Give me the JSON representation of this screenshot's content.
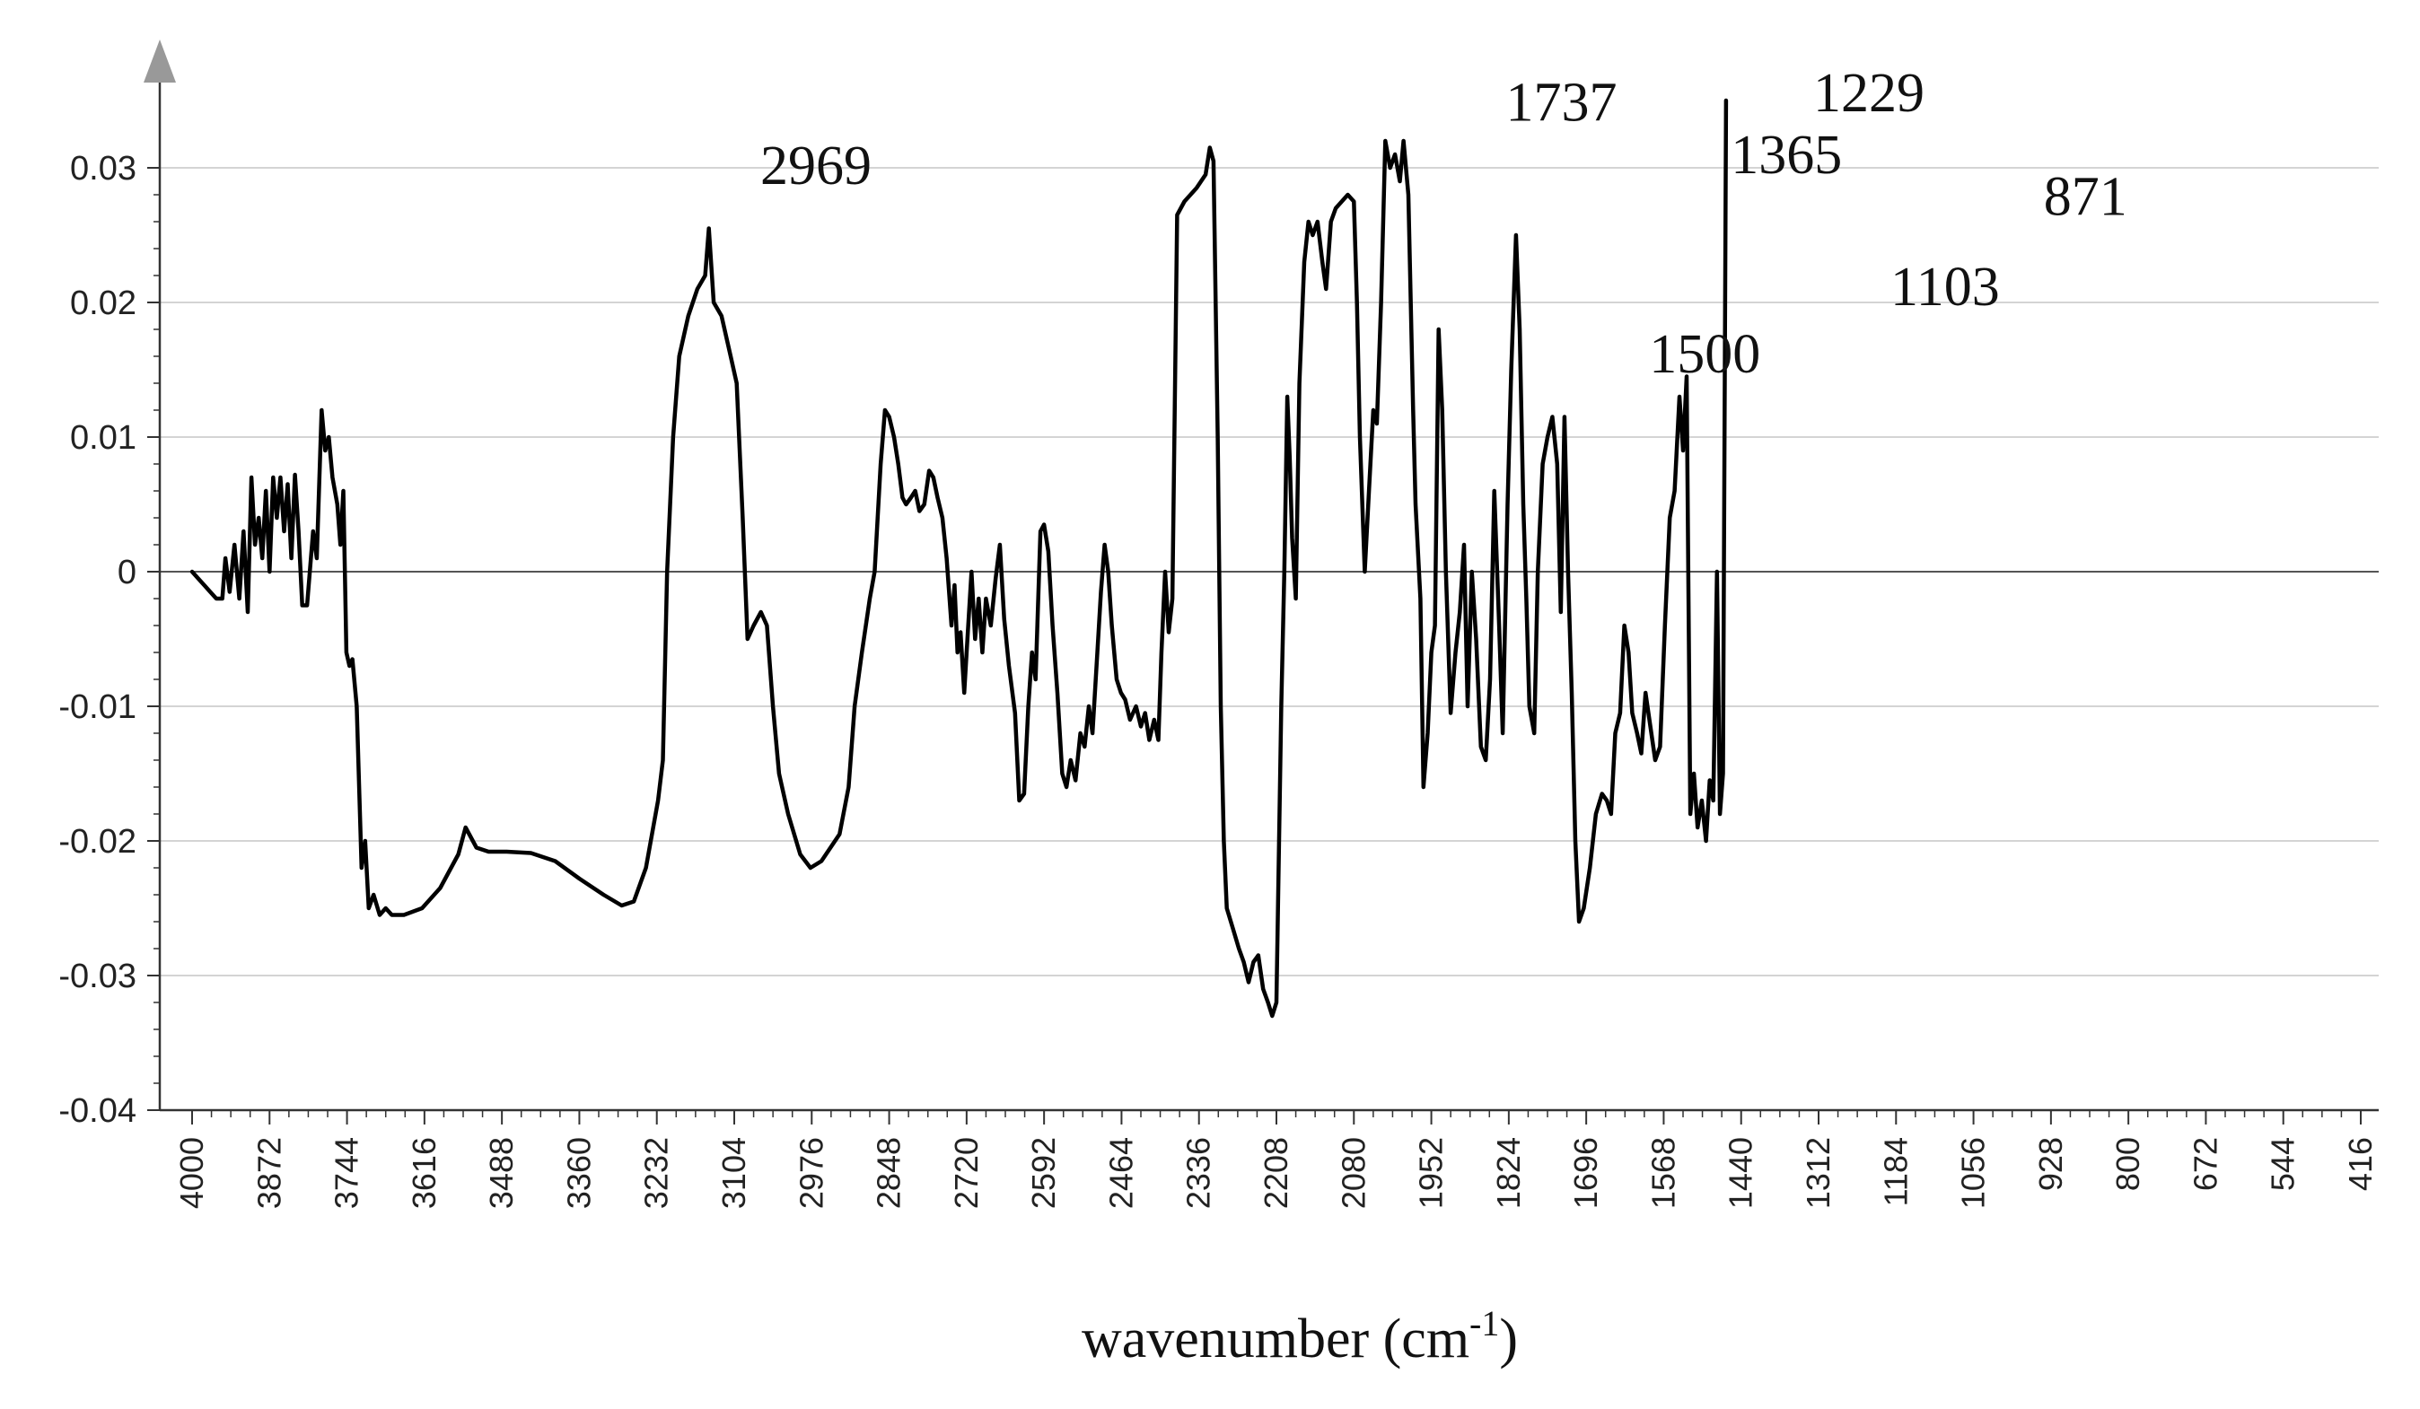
{
  "chart_data": {
    "type": "line",
    "title": "",
    "xlabel_main": "wavenumber (cm",
    "xlabel_sup": "-1",
    "xlabel_close": ")",
    "ylabel": "",
    "xlim": [
      4000,
      400
    ],
    "ylim": [
      -0.04,
      0.035
    ],
    "grid": "horizontal",
    "legend": "none",
    "y_ticks": [
      "0.03",
      "0.02",
      "0.01",
      "0",
      "-0.01",
      "-0.02",
      "-0.03",
      "-0.04"
    ],
    "y_tick_values": [
      0.03,
      0.02,
      0.01,
      0,
      -0.01,
      -0.02,
      -0.03,
      -0.04
    ],
    "x_ticks": [
      "4000",
      "3872",
      "3744",
      "3616",
      "3488",
      "3360",
      "3232",
      "3104",
      "2976",
      "2848",
      "2720",
      "2592",
      "2464",
      "2336",
      "2208",
      "2080",
      "1952",
      "1824",
      "1696",
      "1568",
      "1440",
      "1312",
      "1184",
      "1056",
      "928",
      "800",
      "672",
      "544",
      "416"
    ],
    "x_tick_values": [
      4000,
      3872,
      3744,
      3616,
      3488,
      3360,
      3232,
      3104,
      2976,
      2848,
      2720,
      2592,
      2464,
      2336,
      2208,
      2080,
      1952,
      1824,
      1696,
      1568,
      1440,
      1312,
      1184,
      1056,
      928,
      800,
      672,
      544,
      416
    ],
    "annotations": [
      {
        "text": "2969",
        "x": 2969,
        "y": 0.0288
      },
      {
        "text": "1737",
        "x": 1737,
        "y": 0.0335
      },
      {
        "text": "1500",
        "x": 1500,
        "y": 0.0148
      },
      {
        "text": "1365",
        "x": 1365,
        "y": 0.0296
      },
      {
        "text": "1229",
        "x": 1229,
        "y": 0.0342
      },
      {
        "text": "1103",
        "x": 1103,
        "y": 0.0198
      },
      {
        "text": "871",
        "x": 871,
        "y": 0.0265
      }
    ],
    "series": [
      {
        "color": "#000000",
        "points": [
          [
            4000,
            0.0
          ],
          [
            3990,
            -0.0005
          ],
          [
            3980,
            -0.001
          ],
          [
            3970,
            -0.0015
          ],
          [
            3960,
            -0.002
          ],
          [
            3950,
            -0.002
          ],
          [
            3945,
            0.001
          ],
          [
            3938,
            -0.0015
          ],
          [
            3930,
            0.002
          ],
          [
            3922,
            -0.002
          ],
          [
            3915,
            0.003
          ],
          [
            3908,
            -0.003
          ],
          [
            3902,
            0.007
          ],
          [
            3896,
            0.002
          ],
          [
            3890,
            0.004
          ],
          [
            3884,
            0.001
          ],
          [
            3878,
            0.006
          ],
          [
            3872,
            0.0
          ],
          [
            3866,
            0.007
          ],
          [
            3860,
            0.004
          ],
          [
            3854,
            0.007
          ],
          [
            3848,
            0.003
          ],
          [
            3842,
            0.0065
          ],
          [
            3836,
            0.001
          ],
          [
            3830,
            0.0072
          ],
          [
            3824,
            0.003
          ],
          [
            3818,
            -0.0025
          ],
          [
            3810,
            -0.0025
          ],
          [
            3800,
            0.003
          ],
          [
            3794,
            0.001
          ],
          [
            3786,
            0.012
          ],
          [
            3780,
            0.009
          ],
          [
            3774,
            0.01
          ],
          [
            3768,
            0.007
          ],
          [
            3760,
            0.005
          ],
          [
            3755,
            0.002
          ],
          [
            3750,
            0.006
          ],
          [
            3745,
            -0.006
          ],
          [
            3740,
            -0.007
          ],
          [
            3735,
            -0.0065
          ],
          [
            3728,
            -0.01
          ],
          [
            3720,
            -0.022
          ],
          [
            3714,
            -0.02
          ],
          [
            3708,
            -0.025
          ],
          [
            3700,
            -0.024
          ],
          [
            3690,
            -0.0255
          ],
          [
            3680,
            -0.025
          ],
          [
            3670,
            -0.0255
          ],
          [
            3650,
            -0.0255
          ],
          [
            3620,
            -0.025
          ],
          [
            3590,
            -0.0235
          ],
          [
            3560,
            -0.021
          ],
          [
            3548,
            -0.019
          ],
          [
            3530,
            -0.0205
          ],
          [
            3510,
            -0.0208
          ],
          [
            3480,
            -0.0208
          ],
          [
            3440,
            -0.0209
          ],
          [
            3400,
            -0.0215
          ],
          [
            3360,
            -0.0228
          ],
          [
            3320,
            -0.024
          ],
          [
            3290,
            -0.0248
          ],
          [
            3270,
            -0.0245
          ],
          [
            3250,
            -0.022
          ],
          [
            3230,
            -0.017
          ],
          [
            3222,
            -0.014
          ],
          [
            3215,
            0.0
          ],
          [
            3205,
            0.01
          ],
          [
            3195,
            0.016
          ],
          [
            3180,
            0.019
          ],
          [
            3165,
            0.021
          ],
          [
            3152,
            0.022
          ],
          [
            3146,
            0.0255
          ],
          [
            3138,
            0.02
          ],
          [
            3125,
            0.019
          ],
          [
            3110,
            0.016
          ],
          [
            3100,
            0.014
          ],
          [
            3090,
            0.004
          ],
          [
            3082,
            -0.005
          ],
          [
            3072,
            -0.004
          ],
          [
            3060,
            -0.003
          ],
          [
            3050,
            -0.004
          ],
          [
            3040,
            -0.01
          ],
          [
            3030,
            -0.015
          ],
          [
            3015,
            -0.018
          ],
          [
            2995,
            -0.021
          ],
          [
            2978,
            -0.022
          ],
          [
            2960,
            -0.0215
          ],
          [
            2945,
            -0.0205
          ],
          [
            2930,
            -0.0195
          ],
          [
            2915,
            -0.016
          ],
          [
            2905,
            -0.01
          ],
          [
            2893,
            -0.006
          ],
          [
            2880,
            -0.002
          ],
          [
            2872,
            0.0
          ],
          [
            2862,
            0.008
          ],
          [
            2855,
            0.012
          ],
          [
            2848,
            0.0115
          ],
          [
            2840,
            0.01
          ],
          [
            2833,
            0.008
          ],
          [
            2826,
            0.0055
          ],
          [
            2820,
            0.005
          ],
          [
            2812,
            0.0055
          ],
          [
            2805,
            0.006
          ],
          [
            2798,
            0.0045
          ],
          [
            2790,
            0.005
          ],
          [
            2782,
            0.0075
          ],
          [
            2775,
            0.007
          ],
          [
            2768,
            0.0055
          ],
          [
            2760,
            0.004
          ],
          [
            2753,
            0.001
          ],
          [
            2745,
            -0.004
          ],
          [
            2740,
            -0.001
          ],
          [
            2735,
            -0.006
          ],
          [
            2730,
            -0.0045
          ],
          [
            2724,
            -0.009
          ],
          [
            2718,
            -0.0045
          ],
          [
            2712,
            0.0
          ],
          [
            2706,
            -0.005
          ],
          [
            2700,
            -0.002
          ],
          [
            2694,
            -0.006
          ],
          [
            2688,
            -0.002
          ],
          [
            2680,
            -0.004
          ],
          [
            2672,
            -0.0005
          ],
          [
            2665,
            0.002
          ],
          [
            2658,
            -0.0035
          ],
          [
            2650,
            -0.007
          ],
          [
            2640,
            -0.0105
          ],
          [
            2633,
            -0.017
          ],
          [
            2625,
            -0.0165
          ],
          [
            2618,
            -0.01
          ],
          [
            2612,
            -0.006
          ],
          [
            2606,
            -0.008
          ],
          [
            2598,
            0.003
          ],
          [
            2592,
            0.0035
          ],
          [
            2585,
            0.0015
          ],
          [
            2578,
            -0.004
          ],
          [
            2570,
            -0.009
          ],
          [
            2562,
            -0.015
          ],
          [
            2555,
            -0.016
          ],
          [
            2548,
            -0.014
          ],
          [
            2540,
            -0.0155
          ],
          [
            2532,
            -0.012
          ],
          [
            2525,
            -0.013
          ],
          [
            2518,
            -0.01
          ],
          [
            2512,
            -0.012
          ],
          [
            2504,
            -0.006
          ],
          [
            2498,
            -0.0015
          ],
          [
            2492,
            0.002
          ],
          [
            2486,
            0.0
          ],
          [
            2480,
            -0.004
          ],
          [
            2472,
            -0.008
          ],
          [
            2465,
            -0.009
          ],
          [
            2458,
            -0.0095
          ],
          [
            2450,
            -0.011
          ],
          [
            2440,
            -0.01
          ],
          [
            2432,
            -0.0115
          ],
          [
            2425,
            -0.0105
          ],
          [
            2418,
            -0.0125
          ],
          [
            2410,
            -0.011
          ],
          [
            2403,
            -0.0125
          ],
          [
            2398,
            -0.006
          ],
          [
            2392,
            0.0
          ],
          [
            2386,
            -0.0045
          ],
          [
            2380,
            -0.002
          ],
          [
            2372,
            0.0265
          ],
          [
            2360,
            0.0275
          ],
          [
            2340,
            0.0285
          ],
          [
            2325,
            0.0295
          ],
          [
            2318,
            0.0315
          ],
          [
            2312,
            0.0305
          ],
          [
            2305,
            0.01
          ],
          [
            2300,
            -0.01
          ],
          [
            2295,
            -0.02
          ],
          [
            2290,
            -0.025
          ],
          [
            2280,
            -0.0265
          ],
          [
            2270,
            -0.028
          ],
          [
            2262,
            -0.029
          ],
          [
            2254,
            -0.0305
          ],
          [
            2246,
            -0.029
          ],
          [
            2238,
            -0.0285
          ],
          [
            2230,
            -0.031
          ],
          [
            2222,
            -0.032
          ],
          [
            2215,
            -0.033
          ],
          [
            2208,
            -0.032
          ],
          [
            2200,
            -0.01
          ],
          [
            2195,
            0.0
          ],
          [
            2190,
            0.013
          ],
          [
            2186,
            0.0085
          ],
          [
            2182,
            0.0025
          ],
          [
            2176,
            -0.002
          ],
          [
            2170,
            0.014
          ],
          [
            2162,
            0.023
          ],
          [
            2155,
            0.026
          ],
          [
            2148,
            0.025
          ],
          [
            2140,
            0.026
          ],
          [
            2132,
            0.023
          ],
          [
            2126,
            0.021
          ],
          [
            2118,
            0.026
          ],
          [
            2110,
            0.027
          ],
          [
            2100,
            0.0275
          ],
          [
            2090,
            0.028
          ],
          [
            2080,
            0.0275
          ],
          [
            2075,
            0.02
          ],
          [
            2070,
            0.01
          ],
          [
            2062,
            0.0
          ],
          [
            2055,
            0.006
          ],
          [
            2048,
            0.012
          ],
          [
            2042,
            0.011
          ],
          [
            2035,
            0.02
          ],
          [
            2028,
            0.032
          ],
          [
            2020,
            0.03
          ],
          [
            2012,
            0.031
          ],
          [
            2004,
            0.029
          ],
          [
            1998,
            0.032
          ],
          [
            1990,
            0.028
          ],
          [
            1982,
            0.012
          ],
          [
            1978,
            0.005
          ],
          [
            1970,
            -0.002
          ],
          [
            1965,
            -0.016
          ],
          [
            1958,
            -0.012
          ],
          [
            1952,
            -0.006
          ],
          [
            1946,
            -0.004
          ],
          [
            1940,
            0.018
          ],
          [
            1934,
            0.012
          ],
          [
            1928,
            0.0
          ],
          [
            1920,
            -0.0105
          ],
          [
            1912,
            -0.006
          ],
          [
            1905,
            -0.003
          ],
          [
            1898,
            0.002
          ],
          [
            1892,
            -0.01
          ],
          [
            1885,
            0.0
          ],
          [
            1878,
            -0.005
          ],
          [
            1870,
            -0.013
          ],
          [
            1862,
            -0.014
          ],
          [
            1855,
            -0.008
          ],
          [
            1848,
            0.006
          ],
          [
            1840,
            -0.004
          ],
          [
            1834,
            -0.012
          ],
          [
            1826,
            0.005
          ],
          [
            1820,
            0.015
          ],
          [
            1812,
            0.025
          ],
          [
            1806,
            0.018
          ],
          [
            1800,
            0.005
          ],
          [
            1795,
            -0.002
          ],
          [
            1790,
            -0.01
          ],
          [
            1782,
            -0.012
          ],
          [
            1776,
            0.0
          ],
          [
            1768,
            0.008
          ],
          [
            1760,
            0.01
          ],
          [
            1752,
            0.0115
          ],
          [
            1744,
            0.008
          ],
          [
            1738,
            -0.003
          ],
          [
            1732,
            0.0115
          ],
          [
            1726,
            0.0
          ],
          [
            1720,
            -0.009
          ],
          [
            1714,
            -0.02
          ],
          [
            1708,
            -0.026
          ],
          [
            1700,
            -0.025
          ],
          [
            1690,
            -0.022
          ],
          [
            1680,
            -0.018
          ],
          [
            1670,
            -0.0165
          ],
          [
            1662,
            -0.017
          ],
          [
            1655,
            -0.018
          ],
          [
            1648,
            -0.012
          ],
          [
            1640,
            -0.0105
          ],
          [
            1633,
            -0.004
          ],
          [
            1626,
            -0.006
          ],
          [
            1620,
            -0.0105
          ],
          [
            1612,
            -0.012
          ],
          [
            1605,
            -0.0135
          ],
          [
            1598,
            -0.009
          ],
          [
            1590,
            -0.0115
          ],
          [
            1582,
            -0.014
          ],
          [
            1574,
            -0.013
          ],
          [
            1566,
            -0.004
          ],
          [
            1558,
            0.004
          ],
          [
            1550,
            0.006
          ],
          [
            1542,
            0.013
          ],
          [
            1536,
            0.009
          ],
          [
            1530,
            0.0145
          ],
          [
            1524,
            -0.018
          ],
          [
            1518,
            -0.015
          ],
          [
            1512,
            -0.019
          ],
          [
            1505,
            -0.017
          ],
          [
            1498,
            -0.02
          ],
          [
            1492,
            -0.0155
          ],
          [
            1486,
            -0.017
          ],
          [
            1480,
            0.0
          ],
          [
            1475,
            -0.018
          ],
          [
            1470,
            -0.015
          ],
          [
            1465,
            0.035
          ]
        ]
      }
    ]
  }
}
